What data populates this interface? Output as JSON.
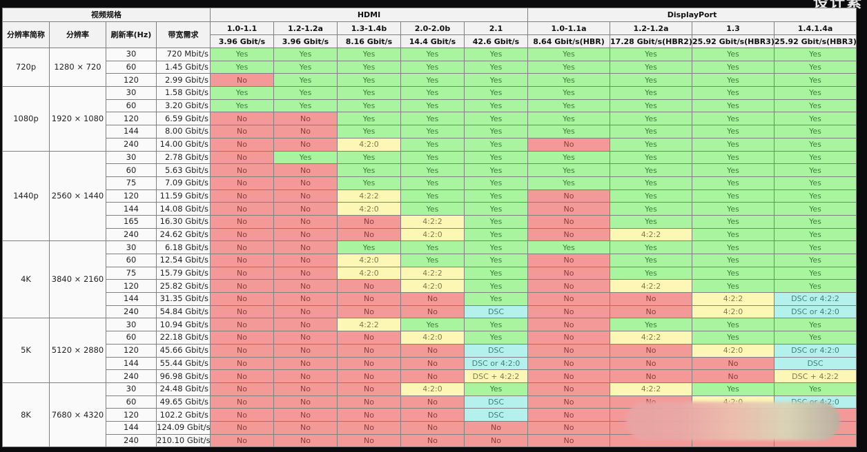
{
  "corner_text": "设计素",
  "header": {
    "spec_group": "视频规格",
    "hdmi_group": "HDMI",
    "dp_group": "DisplayPort",
    "spec_columns": [
      "分辨率简称",
      "分辨率",
      "刷新率(Hz)",
      "带宽需求"
    ],
    "hdmi_versions": [
      {
        "version": "1.0-1.1",
        "bandwidth": "3.96 Gbit/s"
      },
      {
        "version": "1.2-1.2a",
        "bandwidth": "3.96 Gbit/s"
      },
      {
        "version": "1.3-1.4b",
        "bandwidth": "8.16 Gbit/s"
      },
      {
        "version": "2.0-2.0b",
        "bandwidth": "14.4 Gbit/s"
      },
      {
        "version": "2.1",
        "bandwidth": "42.6 Gbit/s"
      }
    ],
    "dp_versions": [
      {
        "version": "1.0-1.1a",
        "bandwidth": "8.64 Gbit/s(HBR)"
      },
      {
        "version": "1.2-1.2a",
        "bandwidth": "17.28 Gbit/s(HBR2)"
      },
      {
        "version": "1.3",
        "bandwidth": "25.92 Gbit/s(HBR3)"
      },
      {
        "version": "1.4.1.4a",
        "bandwidth": "25.92 Gbit/s(HBR3)"
      }
    ]
  },
  "legend_colors": {
    "Yes": "#a9f59f",
    "No": "#f39a99",
    "chroma": "#fdf7b5",
    "DSC": "#b4f1ec"
  },
  "groups": [
    {
      "name": "720p",
      "resolution": "1280 × 720",
      "rows": [
        {
          "hz": "30",
          "bw": "720 Mbit/s",
          "cells": [
            "Yes",
            "Yes",
            "Yes",
            "Yes",
            "Yes",
            "Yes",
            "Yes",
            "Yes",
            "Yes"
          ]
        },
        {
          "hz": "60",
          "bw": "1.45 Gbit/s",
          "cells": [
            "Yes",
            "Yes",
            "Yes",
            "Yes",
            "Yes",
            "Yes",
            "Yes",
            "Yes",
            "Yes"
          ]
        },
        {
          "hz": "120",
          "bw": "2.99 Gbit/s",
          "cells": [
            "No",
            "Yes",
            "Yes",
            "Yes",
            "Yes",
            "Yes",
            "Yes",
            "Yes",
            "Yes"
          ]
        }
      ]
    },
    {
      "name": "1080p",
      "resolution": "1920 × 1080",
      "rows": [
        {
          "hz": "30",
          "bw": "1.58 Gbit/s",
          "cells": [
            "Yes",
            "Yes",
            "Yes",
            "Yes",
            "Yes",
            "Yes",
            "Yes",
            "Yes",
            "Yes"
          ]
        },
        {
          "hz": "60",
          "bw": "3.20 Gbit/s",
          "cells": [
            "Yes",
            "Yes",
            "Yes",
            "Yes",
            "Yes",
            "Yes",
            "Yes",
            "Yes",
            "Yes"
          ]
        },
        {
          "hz": "120",
          "bw": "6.59 Gbit/s",
          "cells": [
            "No",
            "No",
            "Yes",
            "Yes",
            "Yes",
            "Yes",
            "Yes",
            "Yes",
            "Yes"
          ]
        },
        {
          "hz": "144",
          "bw": "8.00 Gbit/s",
          "cells": [
            "No",
            "No",
            "Yes",
            "Yes",
            "Yes",
            "Yes",
            "Yes",
            "Yes",
            "Yes"
          ]
        },
        {
          "hz": "240",
          "bw": "14.00 Gbit/s",
          "cells": [
            "No",
            "No",
            "4:2:0",
            "Yes",
            "Yes",
            "No",
            "Yes",
            "Yes",
            "Yes"
          ]
        }
      ]
    },
    {
      "name": "1440p",
      "resolution": "2560 × 1440",
      "rows": [
        {
          "hz": "30",
          "bw": "2.78 Gbit/s",
          "cells": [
            "No",
            "Yes",
            "Yes",
            "Yes",
            "Yes",
            "Yes",
            "Yes",
            "Yes",
            "Yes"
          ]
        },
        {
          "hz": "60",
          "bw": "5.63 Gbit/s",
          "cells": [
            "No",
            "No",
            "Yes",
            "Yes",
            "Yes",
            "Yes",
            "Yes",
            "Yes",
            "Yes"
          ]
        },
        {
          "hz": "75",
          "bw": "7.09 Gbit/s",
          "cells": [
            "No",
            "No",
            "Yes",
            "Yes",
            "Yes",
            "Yes",
            "Yes",
            "Yes",
            "Yes"
          ]
        },
        {
          "hz": "120",
          "bw": "11.59 Gbit/s",
          "cells": [
            "No",
            "No",
            "4:2:2",
            "Yes",
            "Yes",
            "No",
            "Yes",
            "Yes",
            "Yes"
          ]
        },
        {
          "hz": "144",
          "bw": "14.08 Gbit/s",
          "cells": [
            "No",
            "No",
            "4:2:0",
            "Yes",
            "Yes",
            "No",
            "Yes",
            "Yes",
            "Yes"
          ]
        },
        {
          "hz": "165",
          "bw": "16.30 Gbit/s",
          "cells": [
            "No",
            "No",
            "No",
            "4:2:2",
            "Yes",
            "No",
            "Yes",
            "Yes",
            "Yes"
          ]
        },
        {
          "hz": "240",
          "bw": "24.62 Gbit/s",
          "cells": [
            "No",
            "No",
            "No",
            "4:2:0",
            "Yes",
            "No",
            "4:2:2",
            "Yes",
            "Yes"
          ]
        }
      ]
    },
    {
      "name": "4K",
      "resolution": "3840 × 2160",
      "rows": [
        {
          "hz": "30",
          "bw": "6.18 Gbit/s",
          "cells": [
            "No",
            "No",
            "Yes",
            "Yes",
            "Yes",
            "Yes",
            "Yes",
            "Yes",
            "Yes"
          ]
        },
        {
          "hz": "60",
          "bw": "12.54 Gbit/s",
          "cells": [
            "No",
            "No",
            "4:2:0",
            "Yes",
            "Yes",
            "No",
            "Yes",
            "Yes",
            "Yes"
          ]
        },
        {
          "hz": "75",
          "bw": "15.79 Gbit/s",
          "cells": [
            "No",
            "No",
            "4:2:0",
            "4:2:2",
            "Yes",
            "No",
            "Yes",
            "Yes",
            "Yes"
          ]
        },
        {
          "hz": "120",
          "bw": "25.82 Gbit/s",
          "cells": [
            "No",
            "No",
            "No",
            "4:2:0",
            "Yes",
            "No",
            "4:2:2",
            "Yes",
            "Yes"
          ]
        },
        {
          "hz": "144",
          "bw": "31.35 Gbit/s",
          "cells": [
            "No",
            "No",
            "No",
            "No",
            "Yes",
            "No",
            "No",
            "4:2:2",
            "DSC or 4:2:2"
          ]
        },
        {
          "hz": "240",
          "bw": "54.84 Gbit/s",
          "cells": [
            "No",
            "No",
            "No",
            "No",
            "DSC",
            "No",
            "No",
            "4:2:0",
            "DSC or 4:2:0"
          ]
        }
      ]
    },
    {
      "name": "5K",
      "resolution": "5120 × 2880",
      "rows": [
        {
          "hz": "30",
          "bw": "10.94 Gbit/s",
          "cells": [
            "No",
            "No",
            "4:2:2",
            "Yes",
            "Yes",
            "No",
            "Yes",
            "Yes",
            "Yes"
          ]
        },
        {
          "hz": "60",
          "bw": "22.18 Gbit/s",
          "cells": [
            "No",
            "No",
            "No",
            "4:2:0",
            "Yes",
            "No",
            "4:2:2",
            "Yes",
            "Yes"
          ]
        },
        {
          "hz": "120",
          "bw": "45.66 Gbit/s",
          "cells": [
            "No",
            "No",
            "No",
            "No",
            "DSC",
            "No",
            "No",
            "4:2:0",
            "DSC or 4:2:0"
          ]
        },
        {
          "hz": "144",
          "bw": "55.44 Gbit/s",
          "cells": [
            "No",
            "No",
            "No",
            "No",
            "DSC or 4:2:0",
            "No",
            "No",
            "No",
            "DSC"
          ]
        },
        {
          "hz": "240",
          "bw": "96.98 Gbit/s",
          "cells": [
            "No",
            "No",
            "No",
            "No",
            "DSC + 4:2:2",
            "No",
            "No",
            "No",
            "DSC + 4:2:2"
          ]
        }
      ]
    },
    {
      "name": "8K",
      "resolution": "7680 × 4320",
      "rows": [
        {
          "hz": "30",
          "bw": "24.48 Gbit/s",
          "cells": [
            "No",
            "No",
            "No",
            "4:2:0",
            "Yes",
            "No",
            "4:2:2",
            "Yes",
            "Yes"
          ]
        },
        {
          "hz": "60",
          "bw": "49.65 Gbit/s",
          "cells": [
            "No",
            "No",
            "No",
            "No",
            "DSC",
            "No",
            "No",
            "4:2:0",
            "DSC or 4:2:0"
          ]
        },
        {
          "hz": "120",
          "bw": "102.2 Gbit/s",
          "cells": [
            "No",
            "No",
            "No",
            "No",
            "DSC",
            "No",
            "",
            "",
            ""
          ]
        },
        {
          "hz": "144",
          "bw": "124.09 Gbit/s",
          "cells": [
            "No",
            "No",
            "No",
            "No",
            "No",
            "No",
            "",
            "",
            ""
          ]
        },
        {
          "hz": "240",
          "bw": "210.10 Gbit/s",
          "cells": [
            "No",
            "No",
            "No",
            "No",
            "No",
            "No",
            "",
            "",
            ""
          ]
        }
      ]
    }
  ]
}
